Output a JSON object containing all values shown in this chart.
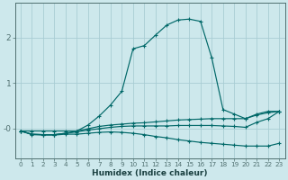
{
  "xlabel": "Humidex (Indice chaleur)",
  "background_color": "#cde8ec",
  "grid_color": "#a8cdd4",
  "line_color": "#006868",
  "xlim": [
    -0.5,
    23.5
  ],
  "ylim": [
    -0.65,
    2.75
  ],
  "x_ticks": [
    0,
    1,
    2,
    3,
    4,
    5,
    6,
    7,
    8,
    9,
    10,
    11,
    12,
    13,
    14,
    15,
    16,
    17,
    18,
    19,
    20,
    21,
    22,
    23
  ],
  "y_ticks": [
    0,
    1,
    2
  ],
  "y_tick_labels": [
    "-0",
    "1",
    "2"
  ],
  "lines": [
    {
      "x": [
        0,
        1,
        2,
        3,
        4,
        5,
        6,
        7,
        8,
        9,
        10,
        11,
        12,
        13,
        14,
        15,
        16,
        17,
        18,
        19,
        20,
        21,
        22,
        23
      ],
      "y": [
        -0.05,
        -0.05,
        -0.05,
        -0.05,
        -0.05,
        -0.05,
        0.08,
        0.28,
        0.52,
        0.82,
        1.75,
        1.82,
        2.05,
        2.27,
        2.38,
        2.4,
        2.35,
        1.55,
        0.42,
        0.32,
        0.22,
        0.32,
        0.38,
        0.38
      ]
    },
    {
      "x": [
        0,
        1,
        2,
        3,
        4,
        5,
        6,
        7,
        8,
        9,
        10,
        11,
        12,
        13,
        14,
        15,
        16,
        17,
        18,
        19,
        20,
        21,
        22,
        23
      ],
      "y": [
        -0.05,
        -0.12,
        -0.13,
        -0.13,
        -0.1,
        -0.05,
        0.0,
        0.05,
        0.08,
        0.1,
        0.12,
        0.13,
        0.15,
        0.17,
        0.19,
        0.2,
        0.21,
        0.22,
        0.22,
        0.22,
        0.22,
        0.3,
        0.35,
        0.38
      ]
    },
    {
      "x": [
        0,
        1,
        2,
        3,
        4,
        5,
        6,
        7,
        8,
        9,
        10,
        11,
        12,
        13,
        14,
        15,
        16,
        17,
        18,
        19,
        20,
        21,
        22,
        23
      ],
      "y": [
        -0.05,
        -0.12,
        -0.13,
        -0.13,
        -0.1,
        -0.07,
        -0.03,
        0.0,
        0.03,
        0.05,
        0.06,
        0.06,
        0.06,
        0.06,
        0.07,
        0.07,
        0.07,
        0.07,
        0.06,
        0.05,
        0.03,
        0.14,
        0.22,
        0.38
      ]
    },
    {
      "x": [
        0,
        1,
        2,
        3,
        4,
        5,
        6,
        7,
        8,
        9,
        10,
        11,
        12,
        13,
        14,
        15,
        16,
        17,
        18,
        19,
        20,
        21,
        22,
        23
      ],
      "y": [
        -0.05,
        -0.13,
        -0.14,
        -0.14,
        -0.12,
        -0.12,
        -0.1,
        -0.08,
        -0.07,
        -0.08,
        -0.1,
        -0.13,
        -0.17,
        -0.2,
        -0.24,
        -0.27,
        -0.3,
        -0.32,
        -0.34,
        -0.36,
        -0.38,
        -0.38,
        -0.38,
        -0.32
      ]
    }
  ]
}
